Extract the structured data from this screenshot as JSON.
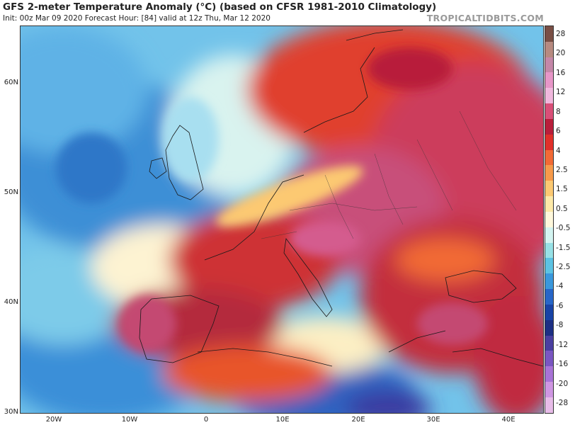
{
  "header": {
    "title": "GFS 2-meter Temperature Anomaly (°C) (based on CFSR 1981-2010 Climatology)",
    "subtitle": "Init: 00z Mar 09 2020   Forecast Hour: [84]   valid at 12z Thu, Mar 12 2020",
    "brand": "TROPICALTIDBITS.COM"
  },
  "map": {
    "latitude_labels": [
      "60N",
      "50N",
      "40N",
      "30N"
    ],
    "longitude_labels": [
      "20W",
      "10W",
      "0",
      "10E",
      "20E",
      "30E",
      "40E"
    ]
  },
  "colorbar": {
    "labels": [
      "28",
      "20",
      "16",
      "12",
      "8",
      "6",
      "4",
      "2.5",
      "1.5",
      "0.5",
      "-0.5",
      "-1.5",
      "-2.5",
      "-4",
      "-6",
      "-8",
      "-12",
      "-16",
      "-20",
      "-28"
    ],
    "colors": [
      "#7a4f45",
      "#b78a80",
      "#c487a8",
      "#e796c8",
      "#f0b8dd",
      "#d94f78",
      "#b81e3b",
      "#e0302a",
      "#f26a35",
      "#f79a4a",
      "#fcc972",
      "#fde9a8",
      "#fff8dc",
      "#d4f4f1",
      "#97e1e6",
      "#5cc3e3",
      "#3a98dc",
      "#2766c8",
      "#1843a6",
      "#1d2f84",
      "#4a3fa0",
      "#7a56c2",
      "#a873d6",
      "#cf96e2",
      "#e7bce8"
    ]
  },
  "colors": {
    "cold_deep": "#1d3e9f",
    "cold": "#4aa2dd",
    "cool": "#9fdbe8",
    "neutral": "#fdf6dc",
    "warm_light": "#fcc972",
    "warm": "#ee5a2f",
    "hot": "#c9283a",
    "very_hot": "#c8507a"
  }
}
